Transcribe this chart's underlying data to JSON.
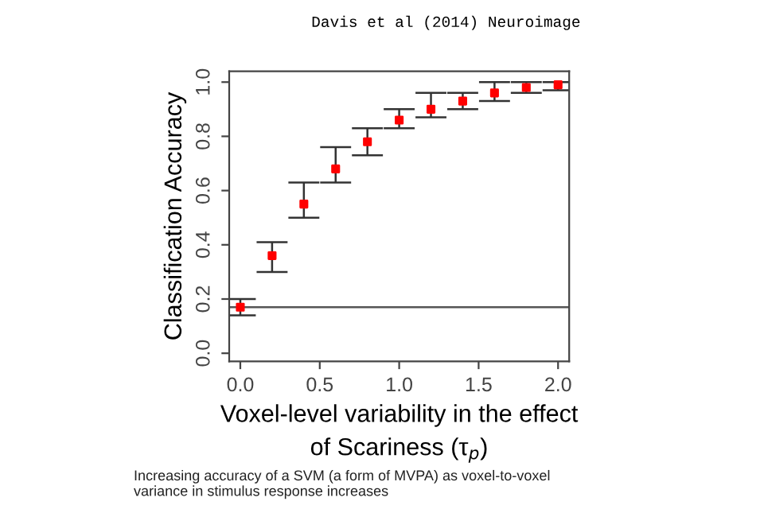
{
  "chart_data": {
    "type": "scatter",
    "xlabel": "Voxel-level variability in the effect\nof Scariness (τ$_{p}$)",
    "ylabel": "Classification Accuracy",
    "annotations": [
      "Davis et al (2014) Neuroimage",
      "Increasing accuracy of a SVM (a form of MVPA) as voxel-to-voxel\nvariance in stimulus response increases"
    ],
    "x": [
      0.0,
      0.2,
      0.4,
      0.6,
      0.8,
      1.0,
      1.2,
      1.4,
      1.6,
      1.8,
      2.0
    ],
    "series": [
      {
        "color": "#ff0000",
        "values": [
          0.17,
          0.36,
          0.55,
          0.68,
          0.78,
          0.86,
          0.9,
          0.93,
          0.96,
          0.98,
          0.99
        ],
        "errors": [
          [
            0.14,
            0.2
          ],
          [
            0.3,
            0.41
          ],
          [
            0.5,
            0.63
          ],
          [
            0.63,
            0.76
          ],
          [
            0.73,
            0.83
          ],
          [
            0.83,
            0.9
          ],
          [
            0.87,
            0.96
          ],
          [
            0.9,
            0.96
          ],
          [
            0.93,
            1.0
          ],
          [
            0.96,
            1.0
          ],
          [
            0.97,
            1.0
          ]
        ]
      }
    ],
    "marker": "square",
    "xlim": [
      -0.07,
      2.07
    ],
    "ylim": [
      -0.03,
      1.04
    ],
    "xticks": [
      {
        "value": 0,
        "label": "0.0"
      },
      0.5,
      {
        "value": 1,
        "label": "1.0"
      },
      1.5,
      {
        "value": 2,
        "label": "2.0"
      }
    ],
    "yticks": [
      {
        "value": 0,
        "label": "0.0"
      },
      0.2,
      0.4,
      0.6,
      0.8,
      {
        "value": 1,
        "label": "1.0"
      }
    ],
    "ref_lines": [
      {
        "axis": "y",
        "value": 0.17,
        "color": "#555555"
      }
    ],
    "grid": false,
    "legend": false
  }
}
